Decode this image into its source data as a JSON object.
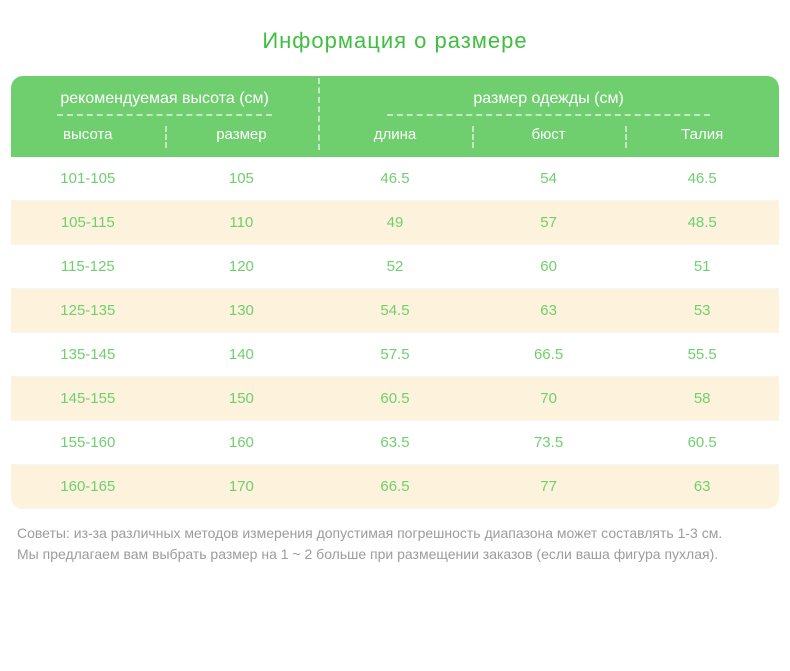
{
  "title": "Информация о размере",
  "header": {
    "group_left": "рекомендуемая высота (см)",
    "group_right": "размер одежды (см)",
    "cols": [
      "высота",
      "размер",
      "длина",
      "бюст",
      "Талия"
    ]
  },
  "rows": [
    [
      "101-105",
      "105",
      "46.5",
      "54",
      "46.5"
    ],
    [
      "105-115",
      "110",
      "49",
      "57",
      "48.5"
    ],
    [
      "115-125",
      "120",
      "52",
      "60",
      "51"
    ],
    [
      "125-135",
      "130",
      "54.5",
      "63",
      "53"
    ],
    [
      "135-145",
      "140",
      "57.5",
      "66.5",
      "55.5"
    ],
    [
      "145-155",
      "150",
      "60.5",
      "70",
      "58"
    ],
    [
      "155-160",
      "160",
      "63.5",
      "73.5",
      "60.5"
    ],
    [
      "160-165",
      "170",
      "66.5",
      "77",
      "63"
    ]
  ],
  "tips_line1": "Советы: из-за различных методов измерения допустимая погрешность диапазона может составлять 1-3 см.",
  "tips_line2": "Мы предлагаем вам выбрать размер на 1 ~ 2 больше при размещении заказов (если ваша фигура пухлая).",
  "colors": {
    "accent": "#6fcf6f",
    "title": "#3fbf3f",
    "stripe": "#fdf3dc",
    "text_muted": "#9c9c9c",
    "dash": "#c3e9c3"
  }
}
